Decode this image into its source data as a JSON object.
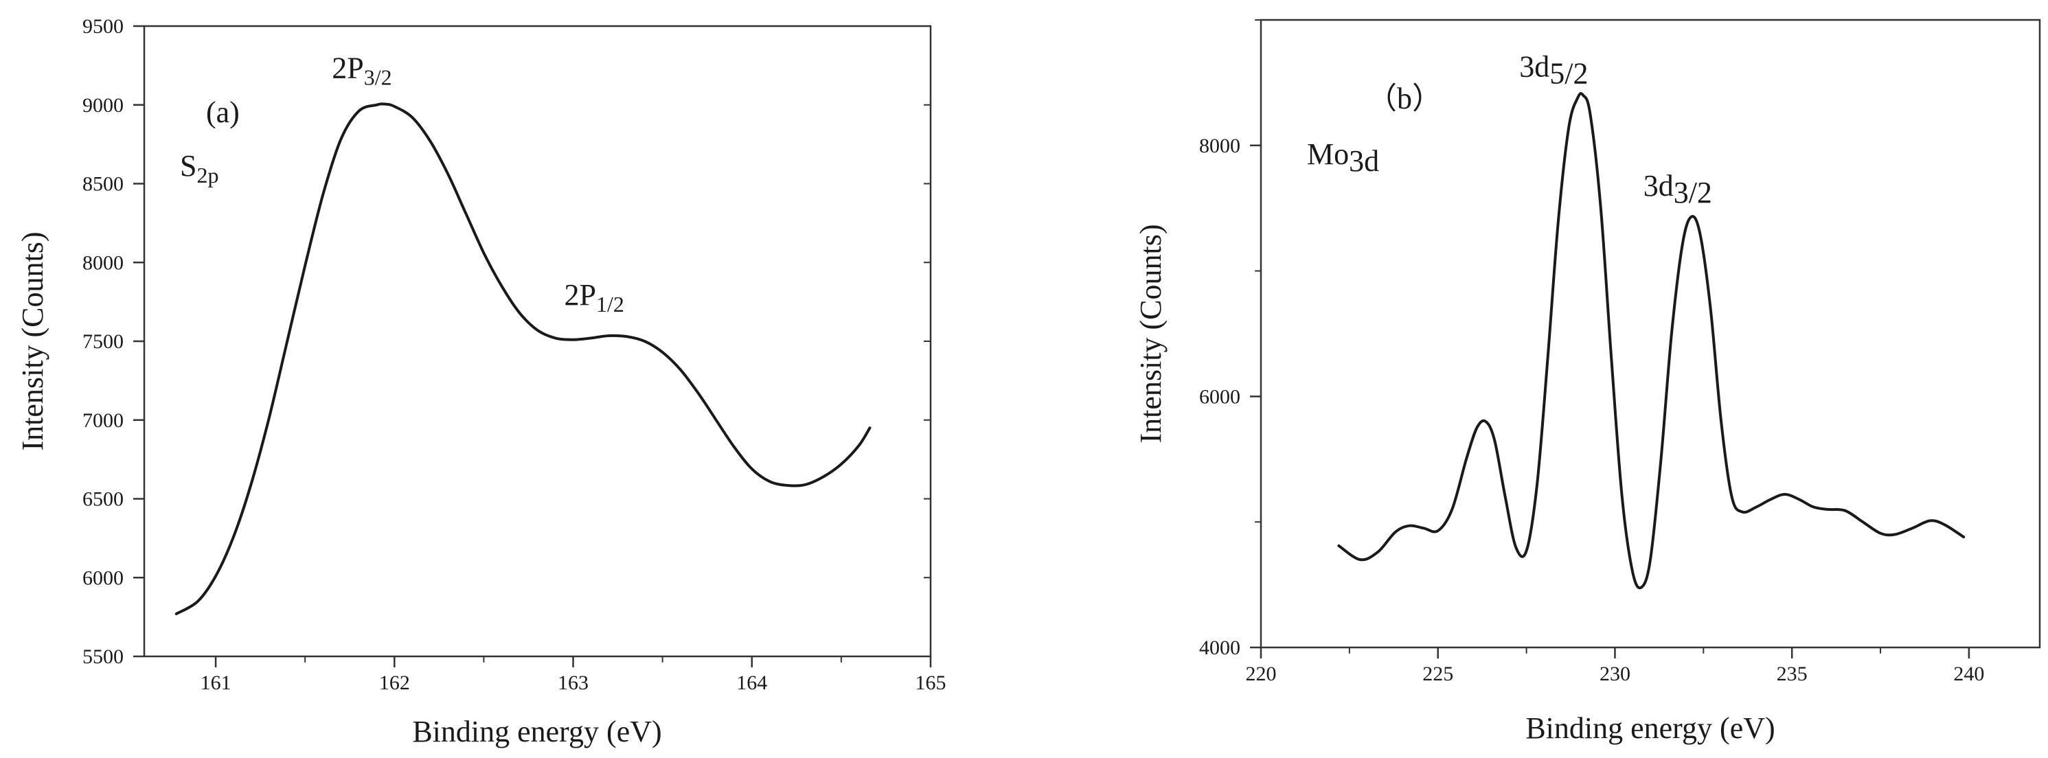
{
  "chart_data": [
    {
      "id": "a",
      "type": "line",
      "panel_label": "(a)",
      "xlabel": "Binding energy (eV)",
      "ylabel": "Intensity (Counts)",
      "xlim": [
        160.6,
        165.0
      ],
      "ylim": [
        5500,
        9500
      ],
      "xticks": [
        161,
        162,
        163,
        164,
        165
      ],
      "yticks": [
        5500,
        6000,
        6500,
        7000,
        7500,
        8000,
        8500,
        9000,
        9500
      ],
      "annotations": [
        {
          "id": "region",
          "main": "S",
          "sub": "2p",
          "x": 160.8,
          "y": 8550
        },
        {
          "id": "peak1",
          "main": "2P",
          "sub": "3/2",
          "x": 161.65,
          "y": 9170
        },
        {
          "id": "peak2",
          "main": "2P",
          "sub": "1/2",
          "x": 162.95,
          "y": 7730
        }
      ],
      "series": [
        {
          "name": "S 2p",
          "x": [
            160.78,
            160.9,
            161.0,
            161.1,
            161.2,
            161.3,
            161.4,
            161.5,
            161.6,
            161.7,
            161.8,
            161.9,
            161.95,
            162.0,
            162.1,
            162.2,
            162.3,
            162.4,
            162.5,
            162.6,
            162.7,
            162.8,
            162.9,
            163.0,
            163.1,
            163.2,
            163.3,
            163.4,
            163.5,
            163.6,
            163.7,
            163.8,
            163.9,
            164.0,
            164.1,
            164.2,
            164.3,
            164.4,
            164.5,
            164.6,
            164.66
          ],
          "y": [
            5770,
            5850,
            6010,
            6260,
            6600,
            7020,
            7500,
            7980,
            8430,
            8780,
            8960,
            9000,
            9005,
            8990,
            8920,
            8770,
            8560,
            8310,
            8060,
            7850,
            7680,
            7570,
            7520,
            7510,
            7520,
            7535,
            7530,
            7500,
            7430,
            7320,
            7170,
            7000,
            6830,
            6690,
            6610,
            6585,
            6590,
            6640,
            6720,
            6840,
            6950
          ]
        }
      ]
    },
    {
      "id": "b",
      "type": "line",
      "panel_label": "（b）",
      "xlabel": "Binding energy (eV)",
      "ylabel": "Intensity (Counts)",
      "xlim": [
        220,
        242
      ],
      "ylim": [
        4000,
        9000
      ],
      "xticks": [
        220,
        225,
        230,
        235,
        240
      ],
      "yticks": [
        4000,
        6000,
        8000
      ],
      "annotations": [
        {
          "id": "region",
          "main": "Mo",
          "sub": "3d",
          "x": 221.3,
          "y": 7850
        },
        {
          "id": "peak1",
          "main": "3d",
          "sub": "5/2",
          "x": 227.3,
          "y": 8550
        },
        {
          "id": "peak2",
          "main": "3d",
          "sub": "3/2",
          "x": 230.8,
          "y": 7600
        }
      ],
      "series": [
        {
          "name": "Mo 3d",
          "x": [
            222.2,
            222.8,
            223.3,
            223.8,
            224.2,
            224.6,
            225.0,
            225.4,
            225.8,
            226.1,
            226.35,
            226.6,
            226.9,
            227.2,
            227.5,
            227.8,
            228.1,
            228.4,
            228.7,
            228.95,
            229.1,
            229.3,
            229.6,
            229.9,
            230.2,
            230.5,
            230.75,
            231.0,
            231.3,
            231.6,
            231.9,
            232.15,
            232.4,
            232.7,
            233.0,
            233.3,
            233.6,
            234.0,
            234.4,
            234.8,
            235.2,
            235.6,
            236.0,
            236.5,
            237.0,
            237.5,
            237.9,
            238.4,
            238.9,
            239.3,
            239.85
          ],
          "y": [
            4810,
            4700,
            4760,
            4920,
            4970,
            4950,
            4930,
            5100,
            5500,
            5750,
            5800,
            5650,
            5200,
            4800,
            4770,
            5300,
            6300,
            7400,
            8150,
            8380,
            8400,
            8250,
            7500,
            6300,
            5200,
            4600,
            4480,
            4700,
            5500,
            6500,
            7200,
            7430,
            7300,
            6700,
            5800,
            5200,
            5080,
            5120,
            5180,
            5220,
            5180,
            5120,
            5100,
            5090,
            5000,
            4910,
            4900,
            4950,
            5010,
            4980,
            4880
          ]
        }
      ]
    }
  ],
  "colors": {
    "line": "#1a1a1a",
    "axis": "#333333",
    "background": "#ffffff"
  }
}
